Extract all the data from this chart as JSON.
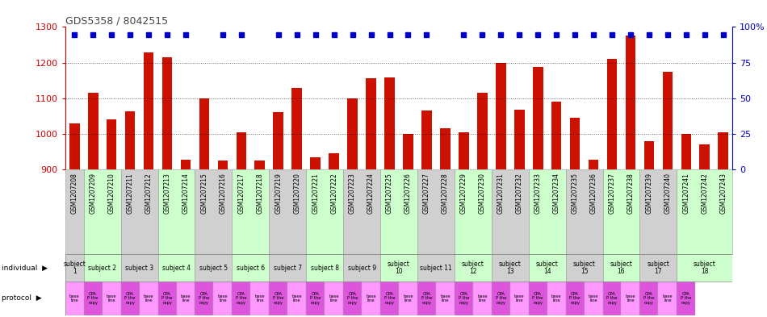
{
  "title": "GDS5358 / 8042515",
  "samples": [
    "GSM1207208",
    "GSM1207209",
    "GSM1207210",
    "GSM1207211",
    "GSM1207212",
    "GSM1207213",
    "GSM1207214",
    "GSM1207215",
    "GSM1207216",
    "GSM1207217",
    "GSM1207218",
    "GSM1207219",
    "GSM1207220",
    "GSM1207221",
    "GSM1207222",
    "GSM1207223",
    "GSM1207224",
    "GSM1207225",
    "GSM1207226",
    "GSM1207227",
    "GSM1207228",
    "GSM1207229",
    "GSM1207230",
    "GSM1207231",
    "GSM1207232",
    "GSM1207233",
    "GSM1207234",
    "GSM1207235",
    "GSM1207236",
    "GSM1207237",
    "GSM1207238",
    "GSM1207239",
    "GSM1207240",
    "GSM1207241",
    "GSM1207242",
    "GSM1207243"
  ],
  "counts": [
    1030,
    1115,
    1040,
    1063,
    1228,
    1215,
    928,
    1100,
    925,
    1005,
    925,
    1060,
    1130,
    935,
    945,
    1100,
    1155,
    1158,
    1000,
    1065,
    1015,
    1005,
    1115,
    1200,
    1068,
    1188,
    1090,
    1045,
    928,
    1210,
    1275,
    980,
    1175,
    1000,
    970,
    1005
  ],
  "pct_high": [
    true,
    true,
    true,
    true,
    true,
    true,
    true,
    false,
    true,
    true,
    false,
    true,
    true,
    true,
    true,
    true,
    true,
    true,
    true,
    true,
    false,
    true,
    true,
    true,
    true,
    true,
    true,
    true,
    true,
    true,
    true,
    true,
    true,
    true,
    true,
    true
  ],
  "subjects": [
    {
      "label": "subject\n1",
      "start": 0,
      "end": 1,
      "color": "#d0d0d0"
    },
    {
      "label": "subject 2",
      "start": 1,
      "end": 3,
      "color": "#ccffcc"
    },
    {
      "label": "subject 3",
      "start": 3,
      "end": 5,
      "color": "#d0d0d0"
    },
    {
      "label": "subject 4",
      "start": 5,
      "end": 7,
      "color": "#ccffcc"
    },
    {
      "label": "subject 5",
      "start": 7,
      "end": 9,
      "color": "#d0d0d0"
    },
    {
      "label": "subject 6",
      "start": 9,
      "end": 11,
      "color": "#ccffcc"
    },
    {
      "label": "subject 7",
      "start": 11,
      "end": 13,
      "color": "#d0d0d0"
    },
    {
      "label": "subject 8",
      "start": 13,
      "end": 15,
      "color": "#ccffcc"
    },
    {
      "label": "subject 9",
      "start": 15,
      "end": 17,
      "color": "#d0d0d0"
    },
    {
      "label": "subject\n10",
      "start": 17,
      "end": 19,
      "color": "#ccffcc"
    },
    {
      "label": "subject 11",
      "start": 19,
      "end": 21,
      "color": "#d0d0d0"
    },
    {
      "label": "subject\n12",
      "start": 21,
      "end": 23,
      "color": "#ccffcc"
    },
    {
      "label": "subject\n13",
      "start": 23,
      "end": 25,
      "color": "#d0d0d0"
    },
    {
      "label": "subject\n14",
      "start": 25,
      "end": 27,
      "color": "#ccffcc"
    },
    {
      "label": "subject\n15",
      "start": 27,
      "end": 29,
      "color": "#d0d0d0"
    },
    {
      "label": "subject\n16",
      "start": 29,
      "end": 31,
      "color": "#ccffcc"
    },
    {
      "label": "subject\n17",
      "start": 31,
      "end": 33,
      "color": "#d0d0d0"
    },
    {
      "label": "subject\n18",
      "start": 33,
      "end": 36,
      "color": "#ccffcc"
    }
  ],
  "protocols": [
    "base\nline",
    "CPA\nP the\nrapy",
    "base\nline",
    "CPA\nP the\nrapy",
    "base\nline",
    "CPA\nP the\nrapy",
    "base\nline",
    "CPA\nP the\nrapy",
    "base\nline",
    "CPA\nP the\nrapy",
    "base\nline",
    "CPA\nP the\nrapy",
    "base\nline",
    "CPA\nP the\nrapy",
    "base\nline",
    "CPA\nP the\nrapy",
    "base\nline",
    "CPA\nP the\nrapy",
    "base\nline",
    "CPA\nP the\nrapy",
    "base\nline",
    "CPA\nP the\nrapy",
    "base\nline",
    "CPA\nP the\nrapy",
    "base\nline",
    "CPA\nP the\nrapy",
    "base\nline",
    "CPA\nP the\nrapy",
    "base\nline",
    "CPA\nP the\nrapy",
    "base\nline",
    "CPA\nP the\nrapy",
    "base\nline",
    "CPA\nP the\nrapy"
  ],
  "bar_color": "#cc1100",
  "pct_color": "#0000cc",
  "ylim": [
    900,
    1300
  ],
  "yticks_left": [
    900,
    1000,
    1100,
    1200,
    1300
  ],
  "yticks_right": [
    0,
    25,
    50,
    75,
    100
  ],
  "grid_lines": [
    1000,
    1100,
    1200
  ],
  "left_axis_color": "#cc0000",
  "right_axis_color": "#0000bb",
  "proto_base_color": "#ff99ff",
  "proto_cpa_color": "#dd55dd",
  "title_color": "#444444"
}
